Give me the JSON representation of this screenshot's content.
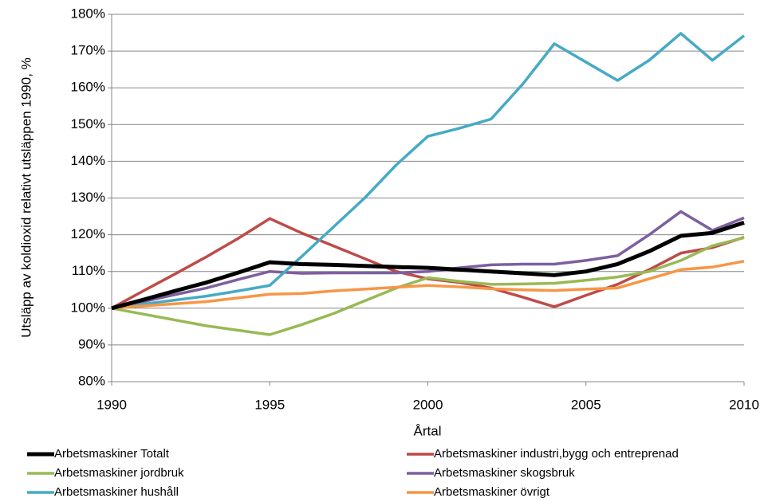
{
  "chart_data": {
    "type": "line",
    "x_label": "Årtal",
    "y_label": "Utsläpp av koldioxid relativt utsläppen 1990, %",
    "x": [
      1990,
      1991,
      1992,
      1993,
      1994,
      1995,
      1996,
      1997,
      1998,
      1999,
      2000,
      2001,
      2002,
      2003,
      2004,
      2005,
      2006,
      2007,
      2008,
      2009,
      2010
    ],
    "series": [
      {
        "name": "Arbetsmaskiner Totalt",
        "color": "#000000",
        "values": [
          100,
          102.3,
          104.7,
          107,
          109.7,
          112.5,
          112,
          111.8,
          111.5,
          111.2,
          111,
          110.5,
          110,
          109.5,
          109,
          110,
          112,
          115.5,
          119.7,
          120.5,
          123.3
        ]
      },
      {
        "name": "Arbetsmaskiner industri,bygg och entreprenad",
        "color": "#be4b48",
        "values": [
          100,
          104.7,
          109.3,
          114,
          119,
          124.4,
          120.5,
          117,
          113.5,
          110,
          108,
          107,
          105.5,
          103,
          100.4,
          103.5,
          106.5,
          110.5,
          115,
          116.5,
          119.3
        ]
      },
      {
        "name": "Arbetsmaskiner jordbruk",
        "color": "#98b954",
        "values": [
          100,
          98.4,
          96.8,
          95.2,
          94,
          92.8,
          95.5,
          98.5,
          102,
          105.5,
          108.3,
          107.3,
          106.5,
          106.6,
          106.8,
          107.6,
          108.5,
          110,
          113,
          117,
          119.2
        ]
      },
      {
        "name": "Arbetsmaskiner skogsbruk",
        "color": "#7d5fa0",
        "values": [
          100,
          101.8,
          103.7,
          105.5,
          107.8,
          110,
          109.5,
          109.6,
          109.6,
          109.6,
          110,
          111,
          111.8,
          112,
          112,
          113,
          114.3,
          120,
          126.3,
          121.2,
          124.6
        ]
      },
      {
        "name": "Arbetsmaskiner hushåll",
        "color": "#46aac5",
        "values": [
          100,
          101.1,
          102.2,
          103.3,
          104.7,
          106.2,
          114,
          122,
          130,
          139,
          146.8,
          149,
          151.5,
          161,
          172,
          167,
          162,
          167.5,
          174.8,
          167.5,
          174.2
        ]
      },
      {
        "name": "Arbetsmaskiner övrigt",
        "color": "#f79646",
        "values": [
          100,
          100.6,
          101.2,
          101.8,
          102.8,
          103.8,
          104,
          104.7,
          105.2,
          105.7,
          106.2,
          105.8,
          105.3,
          105,
          104.8,
          105.2,
          105.5,
          108,
          110.5,
          111.2,
          112.8
        ]
      }
    ],
    "xlim": [
      1990,
      2010
    ],
    "xticks": [
      1990,
      1995,
      2000,
      2005,
      2010
    ],
    "ylim": [
      80,
      180
    ],
    "yticks": [
      {
        "value": 80,
        "label": "80%"
      },
      {
        "value": 90,
        "label": "90%"
      },
      {
        "value": 100,
        "label": "100%"
      },
      {
        "value": 110,
        "label": "110%"
      },
      {
        "value": 120,
        "label": "120%"
      },
      {
        "value": 130,
        "label": "130%"
      },
      {
        "value": 140,
        "label": "140%"
      },
      {
        "value": 150,
        "label": "150%"
      },
      {
        "value": 160,
        "label": "160%"
      },
      {
        "value": 170,
        "label": "170%"
      },
      {
        "value": 180,
        "label": "180%"
      }
    ],
    "grid": true,
    "legend": "bottom"
  }
}
